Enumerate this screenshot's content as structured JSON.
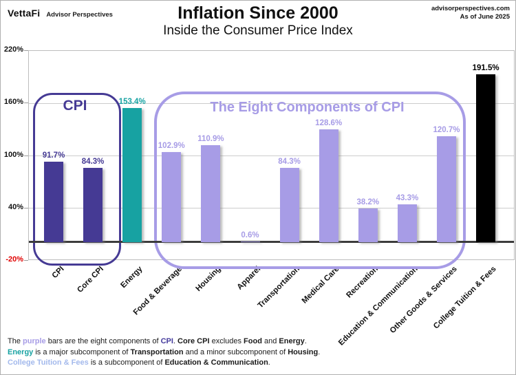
{
  "header": {
    "logo": "VettaFi",
    "logo_sub": "Advisor Perspectives",
    "title": "Inflation Since 2000",
    "subtitle": "Inside the Consumer Price Index",
    "source": "advisorperspectives.com",
    "as_of": "As of June 2025"
  },
  "colors": {
    "dark_purple": "#453a94",
    "teal": "#17a2a2",
    "lavender": "#a79ce6",
    "black": "#000000",
    "negative_tick_red": "#e00000",
    "grid": "#cccccc",
    "zero_line": "#3c3c3c"
  },
  "chart_data": {
    "type": "bar",
    "title": "Inflation Since 2000",
    "subtitle": "Inside the Consumer Price Index",
    "categories": [
      "CPI",
      "Core CPI",
      "Energy",
      "Food & Beverage",
      "Housing",
      "Apparel",
      "Transportation",
      "Medical Care",
      "Recreation",
      "Education & Communication",
      "Other Goods & Services",
      "College Tuition & Fees"
    ],
    "values": [
      91.7,
      84.3,
      153.4,
      102.9,
      110.9,
      0.6,
      84.3,
      128.6,
      38.2,
      43.3,
      120.7,
      191.5
    ],
    "bar_colors": [
      "#453a94",
      "#453a94",
      "#17a2a2",
      "#a79ce6",
      "#a79ce6",
      "#a79ce6",
      "#a79ce6",
      "#a79ce6",
      "#a79ce6",
      "#a79ce6",
      "#a79ce6",
      "#000000"
    ],
    "value_label_suffix": "%",
    "ylim": [
      -20,
      220
    ],
    "yticks": [
      220,
      160,
      100,
      40,
      -20
    ],
    "ytick_suffix": "%",
    "grid": true,
    "legend": "none",
    "groups": [
      {
        "label": "CPI",
        "color": "#453a94",
        "members": [
          "CPI",
          "Core CPI"
        ]
      },
      {
        "label": "The Eight Components of CPI",
        "color": "#a79ce6",
        "members": [
          "Food & Beverage",
          "Housing",
          "Apparel",
          "Transportation",
          "Medical Care",
          "Recreation",
          "Education & Communication",
          "Other Goods & Services"
        ]
      }
    ]
  },
  "footnote": {
    "lines": [
      [
        {
          "t": "The ",
          "s": "n"
        },
        {
          "t": "purple",
          "s": "lav"
        },
        {
          "t": " bars are the eight components of ",
          "s": "n"
        },
        {
          "t": "CPI",
          "s": "dp"
        },
        {
          "t": ". ",
          "s": "n"
        },
        {
          "t": "Core CPI",
          "s": "b"
        },
        {
          "t": " excludes ",
          "s": "n"
        },
        {
          "t": "Food",
          "s": "b"
        },
        {
          "t": " and ",
          "s": "n"
        },
        {
          "t": "Energy",
          "s": "b"
        },
        {
          "t": ".",
          "s": "n"
        }
      ],
      [
        {
          "t": "Energy",
          "s": "teal"
        },
        {
          "t": " is a major subcomponent of ",
          "s": "n"
        },
        {
          "t": "Transportation",
          "s": "b"
        },
        {
          "t": " and a minor subcomponent of ",
          "s": "n"
        },
        {
          "t": "Housing",
          "s": "b"
        },
        {
          "t": ".",
          "s": "n"
        }
      ],
      [
        {
          "t": "College Tuition & Fees",
          "s": "blue"
        },
        {
          "t": " is a subcomponent of ",
          "s": "n"
        },
        {
          "t": "Education & Communication",
          "s": "b"
        },
        {
          "t": ".",
          "s": "n"
        }
      ]
    ]
  }
}
